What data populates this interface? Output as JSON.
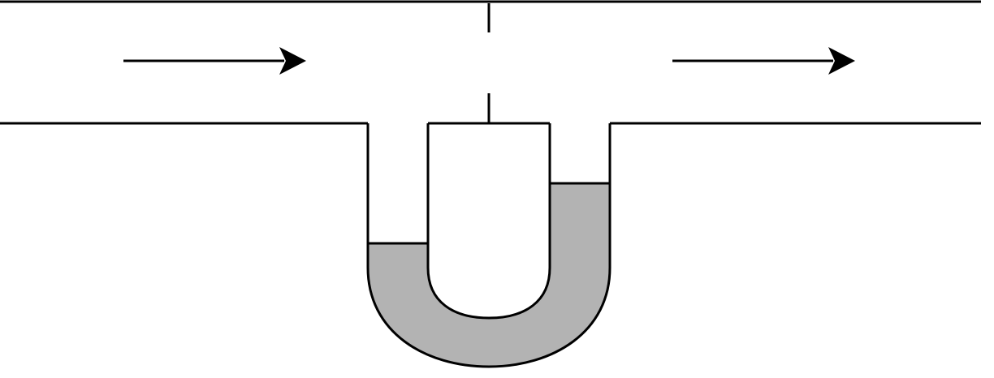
{
  "diagram": {
    "labels": [],
    "colors": {
      "stroke": "#000000",
      "fluid": "#b3b3b3",
      "background": "#ffffff"
    },
    "icons": {
      "inlet_arrow": "right-arrow-icon",
      "outlet_arrow": "right-arrow-icon"
    },
    "flow_direction": "left-to-right",
    "manometer": {
      "type": "u-tube",
      "left_leg_level": "lower",
      "right_leg_level": "higher"
    }
  }
}
